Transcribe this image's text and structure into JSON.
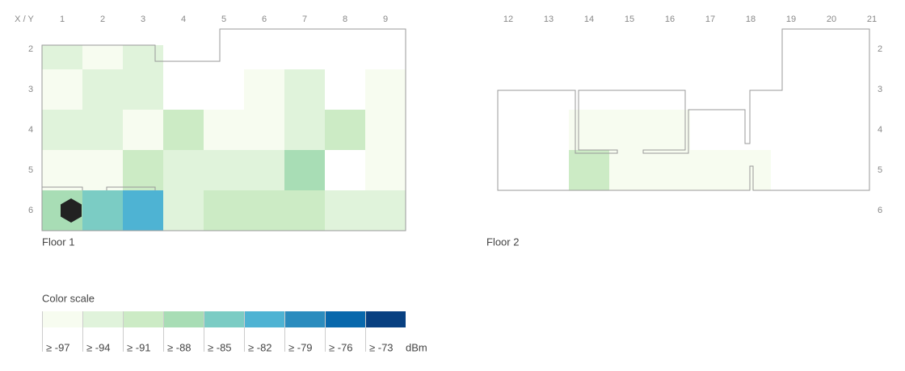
{
  "chart_data": {
    "type": "heatmap",
    "axis_label": "X / Y",
    "floors": [
      {
        "title": "Floor 1",
        "x": [
          1,
          2,
          3,
          4,
          5,
          6,
          7,
          8,
          9
        ],
        "y": [
          2,
          3,
          4,
          5,
          6
        ],
        "values": [
          [
            -94,
            -97,
            -94,
            null,
            null,
            null,
            null,
            null,
            null
          ],
          [
            -97,
            -94,
            -94,
            null,
            null,
            -97,
            -94,
            null,
            -97
          ],
          [
            -94,
            -94,
            -97,
            -91,
            -97,
            -97,
            -94,
            -91,
            -97
          ],
          [
            -97,
            -97,
            -91,
            -94,
            -94,
            -94,
            -88,
            null,
            -97
          ],
          [
            -88,
            -85,
            -82,
            -94,
            -91,
            -91,
            -91,
            -94,
            -94
          ]
        ]
      },
      {
        "title": "Floor 2",
        "x": [
          12,
          13,
          14,
          15,
          16,
          17,
          18,
          19,
          20,
          21
        ],
        "y": [
          2,
          3,
          4,
          5,
          6
        ],
        "values": [
          [
            null,
            null,
            null,
            null,
            null,
            null,
            null,
            null,
            null,
            null
          ],
          [
            null,
            null,
            null,
            null,
            null,
            null,
            null,
            null,
            null,
            null
          ],
          [
            null,
            null,
            -97,
            -97,
            -97,
            null,
            null,
            null,
            null,
            null
          ],
          [
            null,
            null,
            -91,
            -97,
            -97,
            -97,
            -97,
            null,
            null,
            null
          ],
          [
            null,
            null,
            null,
            null,
            null,
            null,
            null,
            null,
            null,
            null
          ]
        ]
      }
    ],
    "color_scale": {
      "title": "Color scale",
      "unit": "dBm",
      "thresholds": [
        -97,
        -94,
        -91,
        -88,
        -85,
        -82,
        -79,
        -76,
        -73
      ],
      "labels": [
        "≥ -97",
        "≥ -94",
        "≥ -91",
        "≥ -88",
        "≥ -85",
        "≥ -82",
        "≥ -79",
        "≥ -76",
        "≥ -73"
      ],
      "colors": [
        "#f7fcf0",
        "#e0f3db",
        "#ccebc5",
        "#a8ddb5",
        "#7bccc4",
        "#4eb3d3",
        "#2b8cbe",
        "#0868ac",
        "#084081"
      ]
    }
  }
}
